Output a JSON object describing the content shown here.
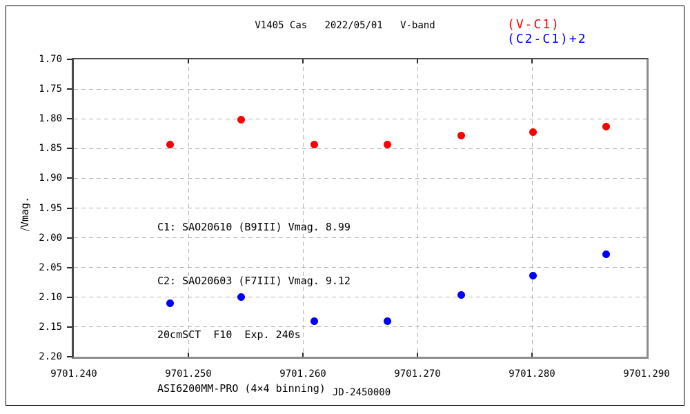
{
  "header": {
    "title": "V1405 Cas   2022/05/01   V-band"
  },
  "annotation": {
    "lines": [
      "C1: SAO20610 (B9III) Vmag. 8.99",
      "C2: SAO20603 (F7III) Vmag. 9.12",
      "20cmSCT  F10  Exp. 240s",
      "ASI6200MM-PRO (4×4 binning)"
    ]
  },
  "chart_data": {
    "type": "scatter",
    "title": "V1405 Cas 2022/05/01 V-band",
    "xlabel": "JD-2450000",
    "ylabel": "⧸Vmag.",
    "xlim": [
      9701.24,
      9701.29
    ],
    "ylim": [
      1.7,
      2.2
    ],
    "y_axis_reversed": true,
    "grid": true,
    "legend_position": "top-right",
    "x_ticks": [
      "9701.240",
      "9701.250",
      "9701.260",
      "9701.270",
      "9701.280",
      "9701.290"
    ],
    "y_ticks": [
      "1.70",
      "1.75",
      "1.80",
      "1.85",
      "1.90",
      "1.95",
      "2.00",
      "2.05",
      "2.10",
      "2.15",
      "2.20"
    ],
    "x": [
      9701.2484,
      9701.2546,
      9701.261,
      9701.2674,
      9701.2738,
      9701.2801,
      9701.2865
    ],
    "series": [
      {
        "name": "(V-C1)",
        "color": "#ff0000",
        "values": [
          1.843,
          1.802,
          1.843,
          1.843,
          1.828,
          1.822,
          1.813
        ]
      },
      {
        "name": "(C2-C1)+2",
        "color": "#0000ff",
        "values": [
          2.11,
          2.1,
          2.14,
          2.14,
          2.096,
          2.064,
          2.028
        ]
      }
    ]
  }
}
